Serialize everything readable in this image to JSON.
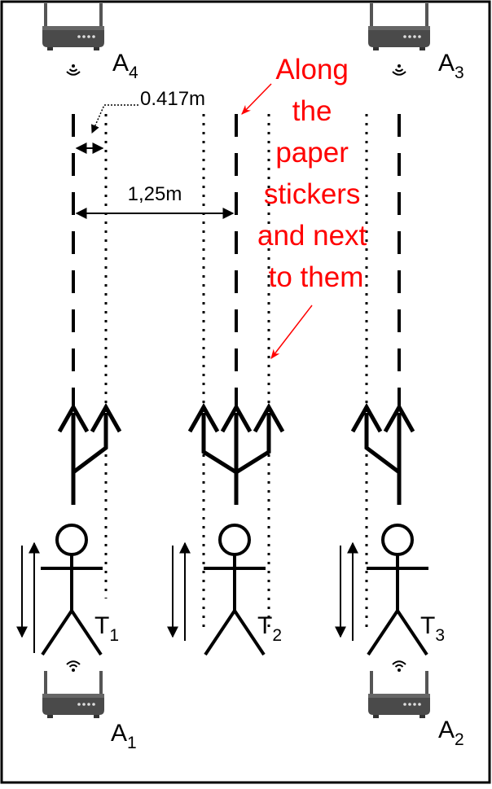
{
  "anchors": [
    {
      "letter": "A",
      "index": "1"
    },
    {
      "letter": "A",
      "index": "2"
    },
    {
      "letter": "A",
      "index": "3"
    },
    {
      "letter": "A",
      "index": "4"
    }
  ],
  "tags": [
    {
      "letter": "T",
      "index": "1"
    },
    {
      "letter": "T",
      "index": "2"
    },
    {
      "letter": "T",
      "index": "3"
    }
  ],
  "dimensions": {
    "offset": "0.417m",
    "spacing": "1,25m"
  },
  "annotation": {
    "lines": [
      "Along",
      "the",
      "paper",
      "stickers",
      "and next",
      "to them"
    ],
    "color": "#ff0000"
  },
  "icons": {
    "anchor": "router-icon",
    "signal": "wifi-signal-icon",
    "person": "person-icon",
    "walk": "walk-direction-arrows-icon"
  }
}
